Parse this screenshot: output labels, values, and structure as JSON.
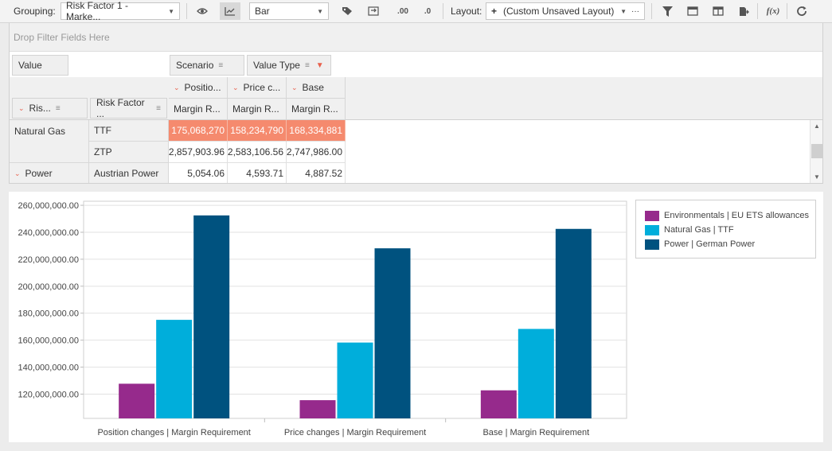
{
  "toolbar": {
    "grouping_label": "Grouping:",
    "grouping_value": "Risk Factor 1 - Marke...",
    "chart_type_value": "Bar",
    "layout_label": "Layout:",
    "layout_add": "+",
    "layout_value": "(Custom Unsaved Layout)",
    "layout_more": "···",
    "decimals_more": ".00",
    "decimals_less": ".0",
    "formula": "f(x)",
    "icons": [
      "eye-icon",
      "line-chart-icon",
      "tag-icon",
      "swap-icon",
      "decimal-increase-icon",
      "decimal-decrease-icon",
      "filter-icon",
      "window-icon",
      "split-view-icon",
      "export-icon",
      "formula-icon",
      "refresh-icon"
    ]
  },
  "pivot": {
    "filter_placeholder": "Drop Filter Fields Here",
    "data_field": "Value",
    "column_fields": [
      {
        "label": "Scenario"
      },
      {
        "label": "Value Type"
      }
    ],
    "row_fields": [
      {
        "label": "Ris..."
      },
      {
        "label": "Risk Factor ..."
      }
    ],
    "column_headers": [
      {
        "label": "Positio...",
        "sub": "Margin R..."
      },
      {
        "label": "Price c...",
        "sub": "Margin R..."
      },
      {
        "label": "Base",
        "sub": "Margin R..."
      }
    ],
    "rows": [
      {
        "group": "Natural Gas",
        "item": "TTF",
        "values": [
          "175,068,270",
          "158,234,790",
          "168,334,881"
        ],
        "highlight": true
      },
      {
        "group": "",
        "item": "ZTP",
        "values": [
          "2,857,903.96",
          "2,583,106.56",
          "2,747,986.00"
        ],
        "highlight": false
      },
      {
        "group": "Power",
        "item": "Austrian Power",
        "values": [
          "5,054.06",
          "4,593.71",
          "4,887.52"
        ],
        "highlight": false
      }
    ],
    "highlight_color": "#f58a6e"
  },
  "chart_data": {
    "type": "bar",
    "categories": [
      "Position changes | Margin Requirement",
      "Price changes | Margin Requirement",
      "Base | Margin Requirement"
    ],
    "series": [
      {
        "name": "Environmentals | EU ETS allowances",
        "color": "#962a8c",
        "values": [
          127700000,
          115500000,
          122800000
        ]
      },
      {
        "name": "Natural Gas | TTF",
        "color": "#00aedb",
        "values": [
          175068270,
          158234790,
          168334881
        ]
      },
      {
        "name": "Power | German Power",
        "color": "#00527f",
        "values": [
          252500000,
          228100000,
          242500000
        ]
      }
    ],
    "yticks": [
      "120,000,000.00",
      "140,000,000.00",
      "160,000,000.00",
      "180,000,000.00",
      "200,000,000.00",
      "220,000,000.00",
      "240,000,000.00",
      "260,000,000.00"
    ],
    "ytick_values": [
      120000000,
      140000000,
      160000000,
      180000000,
      200000000,
      220000000,
      240000000,
      260000000
    ],
    "ylim": [
      102000000,
      263000000
    ],
    "grid": true,
    "legend_position": "right"
  }
}
